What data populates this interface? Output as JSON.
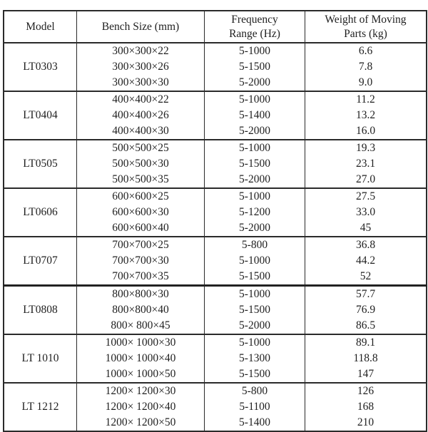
{
  "colors": {
    "background": "#ffffff",
    "border": "#2a2a2a",
    "text": "#1f1f1f"
  },
  "table": {
    "headers": [
      "Model",
      "Bench Size (mm)",
      "Frequency\nRange (Hz)",
      "Weight of Moving\nParts (kg)"
    ],
    "groups": [
      {
        "model": "LT0303",
        "thick_top": false,
        "rows": [
          [
            "300×300×22",
            "5-1000",
            "6.6"
          ],
          [
            "300×300×26",
            "5-1500",
            "7.8"
          ],
          [
            "300×300×30",
            "5-2000",
            "9.0"
          ]
        ]
      },
      {
        "model": "LT0404",
        "thick_top": false,
        "rows": [
          [
            "400×400×22",
            "5-1000",
            "11.2"
          ],
          [
            "400×400×26",
            "5-1400",
            "13.2"
          ],
          [
            "400×400×30",
            "5-2000",
            "16.0"
          ]
        ]
      },
      {
        "model": "LT0505",
        "thick_top": false,
        "rows": [
          [
            "500×500×25",
            "5-1000",
            "19.3"
          ],
          [
            "500×500×30",
            "5-1500",
            "23.1"
          ],
          [
            "500×500×35",
            "5-2000",
            "27.0"
          ]
        ]
      },
      {
        "model": "LT0606",
        "thick_top": false,
        "rows": [
          [
            "600×600×25",
            "5-1000",
            "27.5"
          ],
          [
            "600×600×30",
            "5-1200",
            "33.0"
          ],
          [
            "600×600×40",
            "5-2000",
            "45"
          ]
        ]
      },
      {
        "model": "LT0707",
        "thick_top": false,
        "rows": [
          [
            "700×700×25",
            "5-800",
            "36.8"
          ],
          [
            "700×700×30",
            "5-1000",
            "44.2"
          ],
          [
            "700×700×35",
            "5-1500",
            "52"
          ]
        ]
      },
      {
        "model": "LT0808",
        "thick_top": true,
        "rows": [
          [
            "800×800×30",
            "5-1000",
            "57.7"
          ],
          [
            "800×800×40",
            "5-1500",
            "76.9"
          ],
          [
            "800× 800×45",
            "5-2000",
            "86.5"
          ]
        ]
      },
      {
        "model": "LT 1010",
        "thick_top": false,
        "rows": [
          [
            "1000× 1000×30",
            "5-1000",
            "89.1"
          ],
          [
            "1000× 1000×40",
            "5-1300",
            "118.8"
          ],
          [
            "1000× 1000×50",
            "5-1500",
            "147"
          ]
        ]
      },
      {
        "model": "LT 1212",
        "thick_top": false,
        "rows": [
          [
            "1200× 1200×30",
            "5-800",
            "126"
          ],
          [
            "1200× 1200×40",
            "5-1100",
            "168"
          ],
          [
            "1200× 1200×50",
            "5-1400",
            "210"
          ]
        ]
      }
    ]
  }
}
